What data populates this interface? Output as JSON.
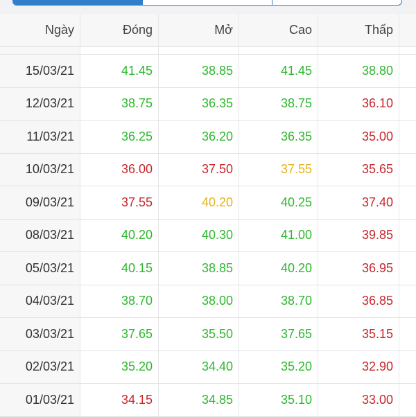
{
  "colors": {
    "up": "#2eb82e",
    "down": "#c8262c",
    "reference": "#e5b31e",
    "accent": "#2f80c8"
  },
  "tabs": [
    "",
    "",
    ""
  ],
  "table": {
    "headers": [
      "Ngày",
      "Đóng",
      "Mở",
      "Cao",
      "Thấp"
    ],
    "rows": [
      {
        "date": "15/03/21",
        "close": {
          "v": "41.45",
          "s": "up"
        },
        "open": {
          "v": "38.85",
          "s": "up"
        },
        "high": {
          "v": "41.45",
          "s": "up"
        },
        "low": {
          "v": "38.80",
          "s": "up"
        }
      },
      {
        "date": "12/03/21",
        "close": {
          "v": "38.75",
          "s": "up"
        },
        "open": {
          "v": "36.35",
          "s": "up"
        },
        "high": {
          "v": "38.75",
          "s": "up"
        },
        "low": {
          "v": "36.10",
          "s": "down"
        }
      },
      {
        "date": "11/03/21",
        "close": {
          "v": "36.25",
          "s": "up"
        },
        "open": {
          "v": "36.20",
          "s": "up"
        },
        "high": {
          "v": "36.35",
          "s": "up"
        },
        "low": {
          "v": "35.00",
          "s": "down"
        }
      },
      {
        "date": "10/03/21",
        "close": {
          "v": "36.00",
          "s": "down"
        },
        "open": {
          "v": "37.50",
          "s": "down"
        },
        "high": {
          "v": "37.55",
          "s": "flat"
        },
        "low": {
          "v": "35.65",
          "s": "down"
        }
      },
      {
        "date": "09/03/21",
        "close": {
          "v": "37.55",
          "s": "down"
        },
        "open": {
          "v": "40.20",
          "s": "flat"
        },
        "high": {
          "v": "40.25",
          "s": "up"
        },
        "low": {
          "v": "37.40",
          "s": "down"
        }
      },
      {
        "date": "08/03/21",
        "close": {
          "v": "40.20",
          "s": "up"
        },
        "open": {
          "v": "40.30",
          "s": "up"
        },
        "high": {
          "v": "41.00",
          "s": "up"
        },
        "low": {
          "v": "39.85",
          "s": "down"
        }
      },
      {
        "date": "05/03/21",
        "close": {
          "v": "40.15",
          "s": "up"
        },
        "open": {
          "v": "38.85",
          "s": "up"
        },
        "high": {
          "v": "40.20",
          "s": "up"
        },
        "low": {
          "v": "36.95",
          "s": "down"
        }
      },
      {
        "date": "04/03/21",
        "close": {
          "v": "38.70",
          "s": "up"
        },
        "open": {
          "v": "38.00",
          "s": "up"
        },
        "high": {
          "v": "38.70",
          "s": "up"
        },
        "low": {
          "v": "36.85",
          "s": "down"
        }
      },
      {
        "date": "03/03/21",
        "close": {
          "v": "37.65",
          "s": "up"
        },
        "open": {
          "v": "35.50",
          "s": "up"
        },
        "high": {
          "v": "37.65",
          "s": "up"
        },
        "low": {
          "v": "35.15",
          "s": "down"
        }
      },
      {
        "date": "02/03/21",
        "close": {
          "v": "35.20",
          "s": "up"
        },
        "open": {
          "v": "34.40",
          "s": "up"
        },
        "high": {
          "v": "35.20",
          "s": "up"
        },
        "low": {
          "v": "32.90",
          "s": "down"
        }
      },
      {
        "date": "01/03/21",
        "close": {
          "v": "34.15",
          "s": "down"
        },
        "open": {
          "v": "34.85",
          "s": "up"
        },
        "high": {
          "v": "35.10",
          "s": "up"
        },
        "low": {
          "v": "33.00",
          "s": "down"
        }
      }
    ]
  }
}
